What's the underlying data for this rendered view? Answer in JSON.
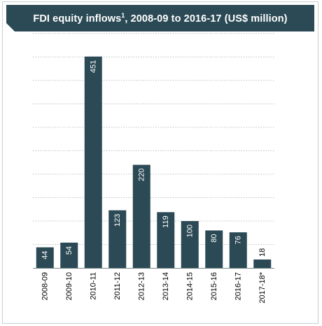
{
  "chart_data": {
    "type": "bar",
    "title": "FDI equity inflows",
    "title_superscript": "1",
    "title_suffix": ", 2008-09 to 2016-17 (US$ million)",
    "categories": [
      "2008-09",
      "2009-10",
      "2010-11",
      "2011-12",
      "2012-13",
      "2013-14",
      "2014-15",
      "2015-16",
      "2016-17",
      "2017-18*"
    ],
    "values": [
      44,
      54,
      451,
      123,
      220,
      119,
      100,
      80,
      76,
      18
    ],
    "data_labels": [
      "44",
      "54",
      "451",
      "123",
      "220",
      "119",
      "100",
      "80",
      "76",
      "18"
    ],
    "ylim": [
      0,
      500
    ],
    "grid": true,
    "grid_style": "dotted",
    "legend": "none",
    "colors": {
      "bar": "#2b4a55",
      "title_bg": "#2b4a55",
      "title_text": "#ffffff",
      "label_inside": "#ffffff",
      "label_outside": "#000000"
    }
  }
}
